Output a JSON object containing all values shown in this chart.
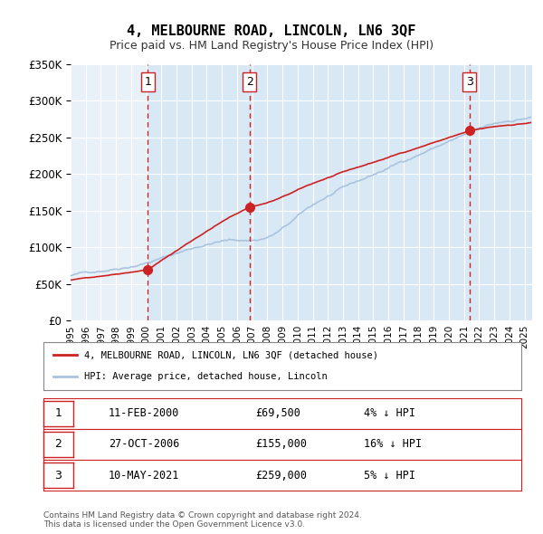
{
  "title": "4, MELBOURNE ROAD, LINCOLN, LN6 3QF",
  "subtitle": "Price paid vs. HM Land Registry's House Price Index (HPI)",
  "ylabel": "",
  "background_color": "#ffffff",
  "plot_bg_color": "#e8f0f8",
  "grid_color": "#ffffff",
  "hpi_color": "#aac4e0",
  "price_color": "#cc2222",
  "sale_marker_color": "#cc2222",
  "vline_color": "#cc2222",
  "vline_shading_color": "#ddeeff",
  "ylim": [
    0,
    350000
  ],
  "yticks": [
    0,
    50000,
    100000,
    150000,
    200000,
    250000,
    300000,
    350000
  ],
  "ytick_labels": [
    "£0",
    "£50K",
    "£100K",
    "£150K",
    "£200K",
    "£250K",
    "£300K",
    "£350K"
  ],
  "xlim_start": 1995.0,
  "xlim_end": 2025.5,
  "sales": [
    {
      "date_num": 2000.11,
      "price": 69500,
      "label": "1"
    },
    {
      "date_num": 2006.82,
      "price": 155000,
      "label": "2"
    },
    {
      "date_num": 2021.36,
      "price": 259000,
      "label": "3"
    }
  ],
  "legend_price_label": "4, MELBOURNE ROAD, LINCOLN, LN6 3QF (detached house)",
  "legend_hpi_label": "HPI: Average price, detached house, Lincoln",
  "table_rows": [
    {
      "num": "1",
      "date": "11-FEB-2000",
      "price": "£69,500",
      "pct": "4% ↓ HPI"
    },
    {
      "num": "2",
      "date": "27-OCT-2006",
      "price": "£155,000",
      "pct": "16% ↓ HPI"
    },
    {
      "num": "3",
      "date": "10-MAY-2021",
      "price": "£259,000",
      "pct": "5% ↓ HPI"
    }
  ],
  "footer": "Contains HM Land Registry data © Crown copyright and database right 2024.\nThis data is licensed under the Open Government Licence v3.0."
}
